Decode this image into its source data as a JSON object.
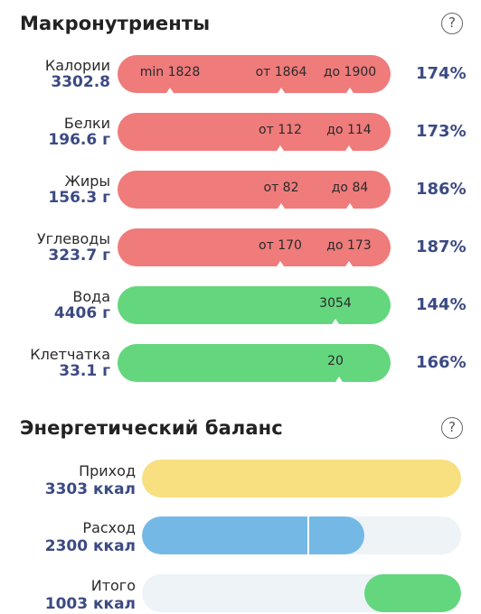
{
  "macros": {
    "title": "Макронутриенты",
    "help": "?",
    "rows": [
      {
        "name": "Калории",
        "value": "3302.8",
        "percent": "174%",
        "marks": [
          "min 1828",
          "от 1864",
          "до 1900"
        ]
      },
      {
        "name": "Белки",
        "value": "196.6 г",
        "percent": "173%",
        "marks": [
          "от 112",
          "до 114"
        ]
      },
      {
        "name": "Жиры",
        "value": "156.3 г",
        "percent": "186%",
        "marks": [
          "от 82",
          "до 84"
        ]
      },
      {
        "name": "Углеводы",
        "value": "323.7 г",
        "percent": "187%",
        "marks": [
          "от 170",
          "до 173"
        ]
      },
      {
        "name": "Вода",
        "value": "4406 г",
        "percent": "144%",
        "marks": [
          "3054"
        ]
      },
      {
        "name": "Клетчатка",
        "value": "33.1 г",
        "percent": "166%",
        "marks": [
          "20"
        ]
      }
    ]
  },
  "energy": {
    "title": "Энергетический баланс",
    "help": "?",
    "rows": [
      {
        "name": "Приход",
        "value": "3303 ккал",
        "fill_fraction": 1.0,
        "color": "#f8df7f"
      },
      {
        "name": "Расход",
        "value": "2300 ккал",
        "fill_fraction": 0.696,
        "color": "#74b9e6"
      },
      {
        "name": "Итого",
        "value": "1003 ккал",
        "fill_fraction": 0.304,
        "color": "#64d67e"
      }
    ]
  },
  "colors": {
    "over": "#ef7b7b",
    "ok": "#64d67e",
    "accent": "#3c4a83"
  }
}
